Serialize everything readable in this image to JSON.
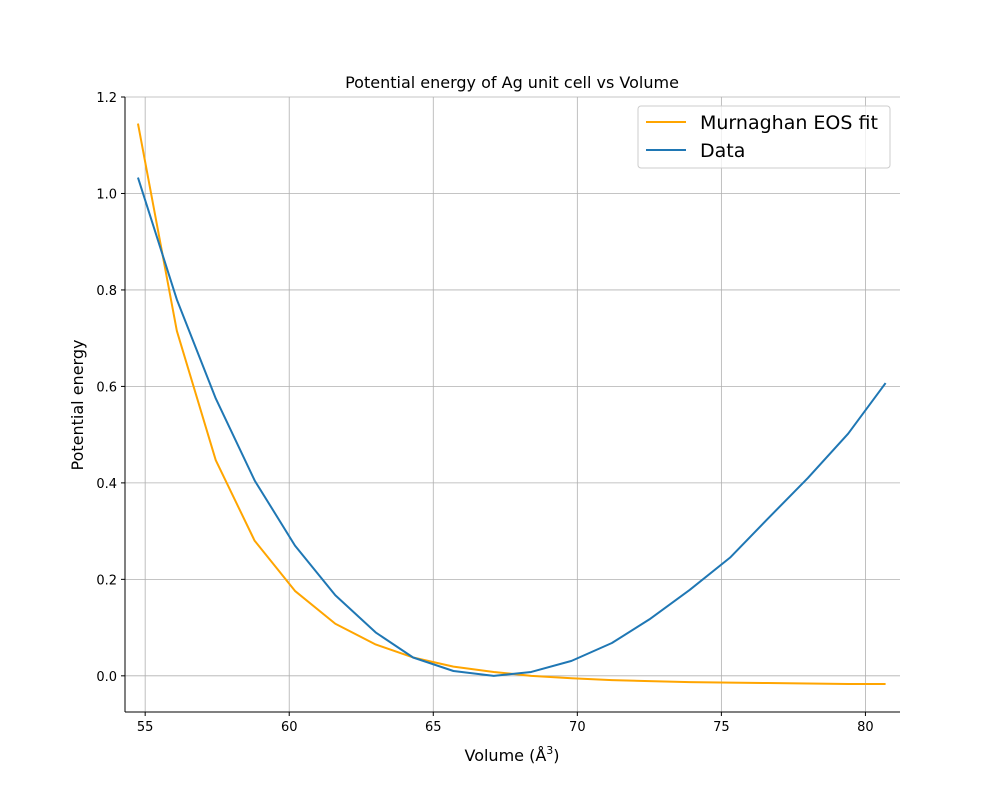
{
  "chart_data": {
    "type": "line",
    "title": "Potential energy of Ag unit cell vs Volume",
    "xlabel": "Volume (Å",
    "xlabel_superscript": "3",
    "xlabel_suffix": ")",
    "ylabel": "Potential energy",
    "xlim": [
      54.3,
      81.2
    ],
    "ylim": [
      -0.075,
      1.2
    ],
    "xticks": [
      55,
      60,
      65,
      70,
      75,
      80
    ],
    "yticks": [
      0.0,
      0.2,
      0.4,
      0.6,
      0.8,
      1.0,
      1.2
    ],
    "ytick_labels": [
      "0.0",
      "0.2",
      "0.4",
      "0.6",
      "0.8",
      "1.0",
      "1.2"
    ],
    "grid": true,
    "legend_position": "top-right",
    "series": [
      {
        "name": "Murnaghan EOS fit",
        "color": "#ffa500",
        "x": [
          54.75,
          56.1,
          57.45,
          58.8,
          60.2,
          61.6,
          63.0,
          64.3,
          65.7,
          67.1,
          68.4,
          69.8,
          71.2,
          72.5,
          73.9,
          75.3,
          76.6,
          78.0,
          79.4,
          80.7
        ],
        "y": [
          1.145,
          0.715,
          0.447,
          0.28,
          0.176,
          0.108,
          0.065,
          0.038,
          0.019,
          0.008,
          0.0,
          -0.005,
          -0.009,
          -0.011,
          -0.013,
          -0.014,
          -0.015,
          -0.016,
          -0.017,
          -0.017
        ]
      },
      {
        "name": "Data",
        "color": "#1f77b4",
        "x": [
          54.75,
          56.1,
          57.45,
          58.8,
          60.2,
          61.6,
          63.0,
          64.3,
          65.7,
          67.1,
          68.4,
          69.8,
          71.2,
          72.5,
          73.9,
          75.3,
          76.6,
          78.0,
          79.4,
          80.7
        ],
        "y": [
          1.033,
          0.78,
          0.575,
          0.405,
          0.27,
          0.167,
          0.09,
          0.038,
          0.01,
          0.0,
          0.008,
          0.031,
          0.068,
          0.117,
          0.178,
          0.245,
          0.325,
          0.41,
          0.502,
          0.607
        ]
      }
    ]
  }
}
